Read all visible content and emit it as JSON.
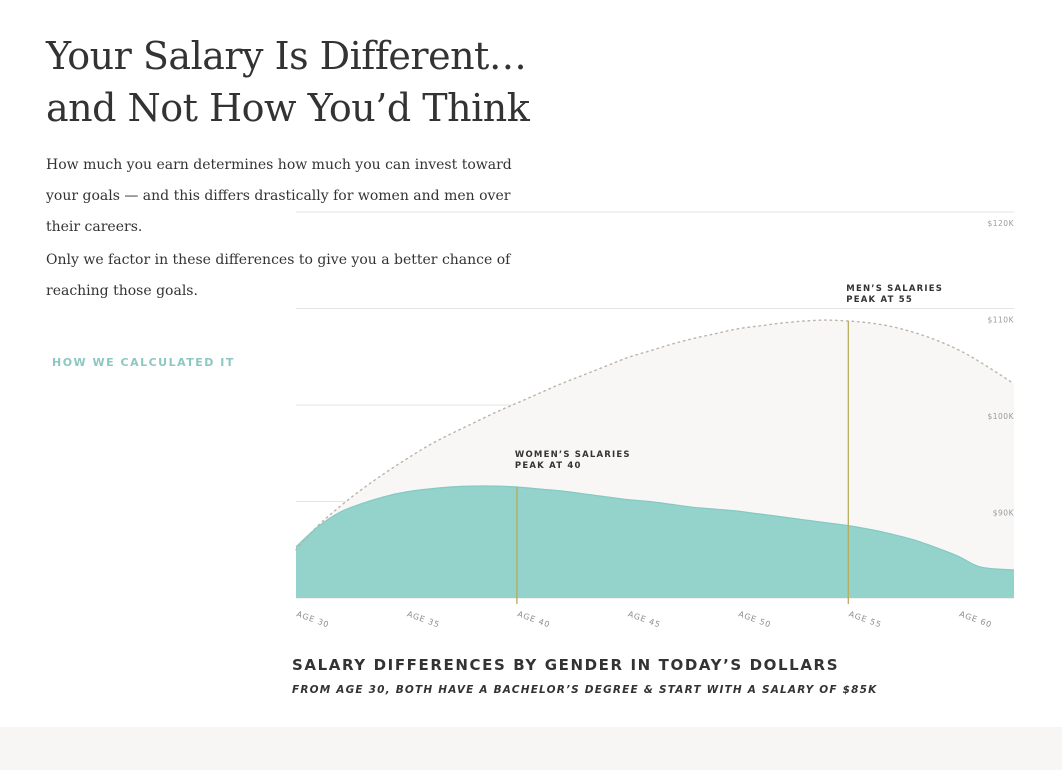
{
  "header": {
    "title_line1": "Your Salary Is Different…",
    "title_line2": "and Not How You’d Think"
  },
  "intro": {
    "paragraph1": "How much you earn determines how much you can invest toward your goals — and this differs drastically for women and men over their careers.",
    "paragraph2": "Only we factor in these differences to give you a better chance of reaching those goals."
  },
  "link": {
    "label": "HOW WE CALCULATED IT"
  },
  "colors": {
    "women_fill": "#93d3cc",
    "men_fill": "#f8f7f5",
    "men_line": "#b9b3a8",
    "peak_line": "#b5ac5e",
    "grid": "#e6e4e0",
    "footer_band": "#f7f6f4"
  },
  "chart_data": {
    "type": "area",
    "title": "SALARY DIFFERENCES BY GENDER IN TODAY’S DOLLARS",
    "subtitle": "FROM AGE 30, BOTH HAVE A BACHELOR’S DEGREE & START WITH A SALARY OF $85K",
    "x_tick_labels": [
      "AGE 30",
      "AGE 35",
      "AGE 40",
      "AGE 45",
      "AGE 50",
      "AGE 55",
      "AGE 60"
    ],
    "x_ticks": [
      30,
      35,
      40,
      45,
      50,
      55,
      60
    ],
    "xlim": [
      30,
      62.5
    ],
    "y_tick_labels": [
      "$90K",
      "$100K",
      "$110K",
      "$120K"
    ],
    "y_ticks": [
      90,
      100,
      110,
      120
    ],
    "ylim": [
      80,
      120
    ],
    "legend": "none",
    "grid": true,
    "series": [
      {
        "x": [
          30,
          31,
          32,
          33,
          34,
          35,
          36,
          37,
          38,
          39,
          40,
          41,
          42,
          43,
          44,
          45,
          46,
          47,
          48,
          49,
          50,
          51,
          52,
          53,
          54,
          55,
          56,
          57,
          58,
          59,
          60,
          61,
          62.5
        ],
        "values": [
          85,
          87.5,
          89.5,
          91.3,
          92.9,
          94.4,
          95.8,
          97,
          98.1,
          99.2,
          100.2,
          101.2,
          102.2,
          103.1,
          104,
          104.9,
          105.6,
          106.3,
          106.9,
          107.4,
          107.9,
          108.2,
          108.5,
          108.7,
          108.8,
          108.7,
          108.5,
          108.1,
          107.5,
          106.7,
          105.7,
          104.4,
          102.2
        ]
      },
      {
        "x": [
          30,
          31,
          32,
          33,
          34,
          35,
          36,
          37,
          38,
          39,
          40,
          41,
          42,
          43,
          44,
          45,
          46,
          47,
          48,
          49,
          50,
          51,
          52,
          53,
          54,
          55,
          56,
          57,
          58,
          59,
          60,
          61,
          62.5
        ],
        "values": [
          85.3,
          87.4,
          88.9,
          89.8,
          90.5,
          91,
          91.3,
          91.5,
          91.6,
          91.6,
          91.5,
          91.3,
          91.1,
          90.8,
          90.5,
          90.2,
          90,
          89.7,
          89.4,
          89.2,
          89,
          88.7,
          88.4,
          88.1,
          87.8,
          87.5,
          87.1,
          86.6,
          86,
          85.2,
          84.3,
          83.2,
          82.9
        ]
      }
    ],
    "annotations": [
      {
        "x": 40,
        "line1": "WOMEN’S SALARIES",
        "line2": "PEAK AT 40"
      },
      {
        "x": 55,
        "line1": "MEN’S SALARIES",
        "line2": "PEAK AT 55"
      }
    ]
  }
}
